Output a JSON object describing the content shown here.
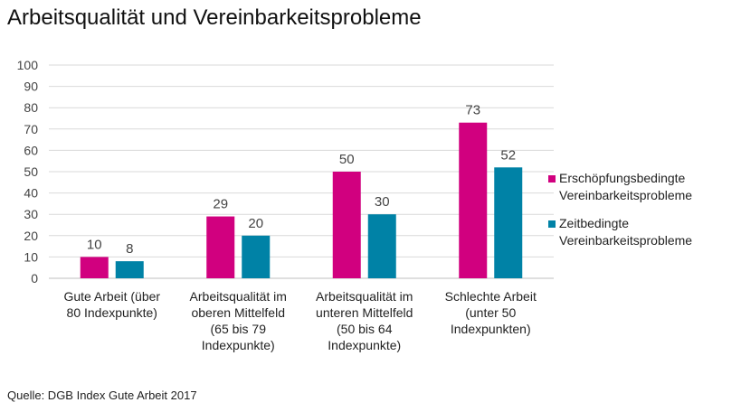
{
  "title": "Arbeitsqualität und Vereinbarkeitsprobleme",
  "source": "Quelle: DGB Index Gute Arbeit 2017",
  "colors": {
    "series1": "#d1007f",
    "series2": "#0082a6",
    "grid": "#d9d9d9",
    "axis_text": "#444444"
  },
  "chart_data": {
    "type": "bar",
    "title": "Arbeitsqualität und Vereinbarkeitsprobleme",
    "xlabel": "",
    "ylabel": "",
    "ylim": [
      0,
      100
    ],
    "yticks": [
      0,
      10,
      20,
      30,
      40,
      50,
      60,
      70,
      80,
      90,
      100
    ],
    "grid": true,
    "legend_position": "right",
    "categories": [
      [
        "Gute Arbeit (über",
        "80 Indexpunkte)"
      ],
      [
        "Arbeitsqualität im",
        "oberen Mittelfeld",
        "(65 bis 79",
        "Indexpunkte)"
      ],
      [
        "Arbeitsqualität im",
        "unteren Mittelfeld",
        "(50 bis 64",
        "Indexpunkte)"
      ],
      [
        "Schlechte Arbeit",
        "(unter 50",
        "Indexpunkten)"
      ]
    ],
    "series": [
      {
        "name": [
          "Erschöpfungsbedingte",
          "Vereinbarkeitsprobleme"
        ],
        "values": [
          10,
          29,
          50,
          73
        ]
      },
      {
        "name": [
          "Zeitbedingte",
          "Vereinbarkeitsprobleme"
        ],
        "values": [
          8,
          20,
          30,
          52
        ]
      }
    ]
  }
}
